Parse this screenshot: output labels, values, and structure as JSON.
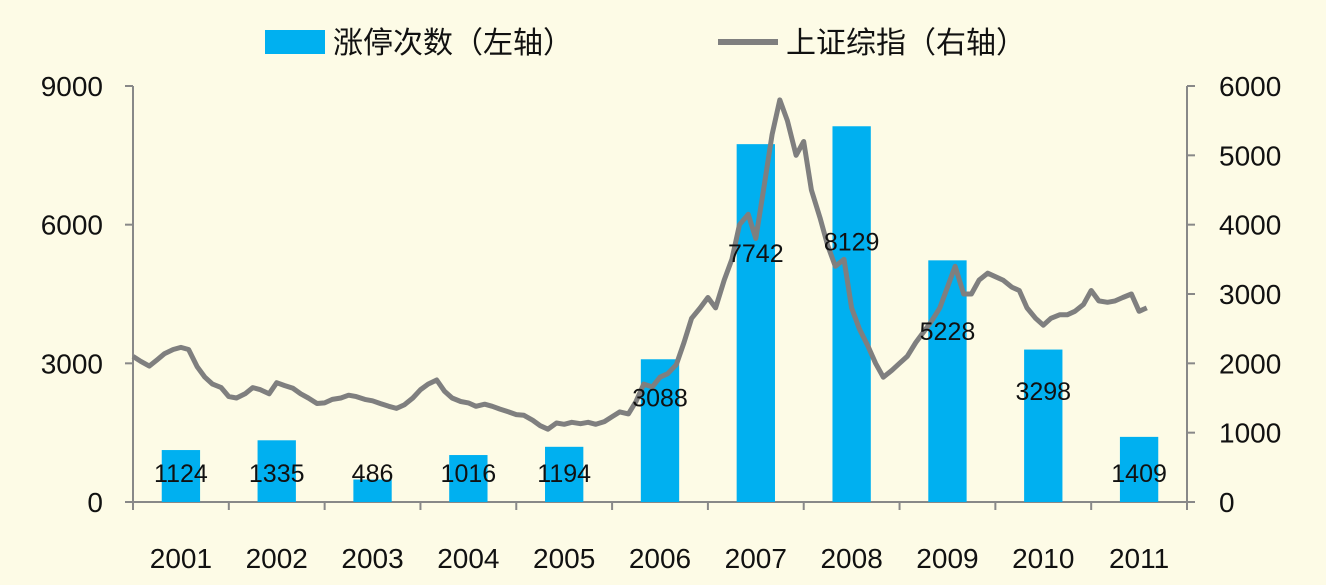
{
  "chart_data": {
    "type": "bar+line",
    "categories": [
      "2001",
      "2002",
      "2003",
      "2004",
      "2005",
      "2006",
      "2007",
      "2008",
      "2009",
      "2010",
      "2011"
    ],
    "series": [
      {
        "name": "涨停次数（左轴）",
        "type": "bar",
        "axis": "left",
        "color": "#00b0f0",
        "values": [
          1124,
          1335,
          486,
          1016,
          1194,
          3088,
          7742,
          8129,
          5228,
          3298,
          1409
        ],
        "labels": [
          "1124",
          "1335",
          "486",
          "1016",
          "1194",
          "3088",
          "7742",
          "8129",
          "5228",
          "3298",
          "1409"
        ]
      },
      {
        "name": "上证综指（右轴）",
        "type": "line",
        "axis": "right",
        "color": "#7f7f7f",
        "x": [
          2001.0,
          2001.08,
          2001.17,
          2001.25,
          2001.33,
          2001.42,
          2001.5,
          2001.58,
          2001.67,
          2001.75,
          2001.83,
          2001.92,
          2002.0,
          2002.08,
          2002.17,
          2002.25,
          2002.33,
          2002.42,
          2002.5,
          2002.58,
          2002.67,
          2002.75,
          2002.83,
          2002.92,
          2003.0,
          2003.08,
          2003.17,
          2003.25,
          2003.33,
          2003.42,
          2003.5,
          2003.58,
          2003.67,
          2003.75,
          2003.83,
          2003.92,
          2004.0,
          2004.08,
          2004.17,
          2004.25,
          2004.33,
          2004.42,
          2004.5,
          2004.58,
          2004.67,
          2004.75,
          2004.83,
          2004.92,
          2005.0,
          2005.08,
          2005.17,
          2005.25,
          2005.33,
          2005.42,
          2005.5,
          2005.58,
          2005.67,
          2005.75,
          2005.83,
          2005.92,
          2006.0,
          2006.08,
          2006.17,
          2006.25,
          2006.33,
          2006.42,
          2006.5,
          2006.58,
          2006.67,
          2006.75,
          2006.83,
          2006.92,
          2007.0,
          2007.08,
          2007.17,
          2007.25,
          2007.33,
          2007.42,
          2007.5,
          2007.58,
          2007.67,
          2007.75,
          2007.83,
          2007.92,
          2008.0,
          2008.08,
          2008.17,
          2008.25,
          2008.33,
          2008.42,
          2008.5,
          2008.58,
          2008.67,
          2008.75,
          2008.83,
          2008.92,
          2009.0,
          2009.08,
          2009.17,
          2009.25,
          2009.33,
          2009.42,
          2009.5,
          2009.58,
          2009.67,
          2009.75,
          2009.83,
          2009.92,
          2010.0,
          2010.08,
          2010.17,
          2010.25,
          2010.33,
          2010.42,
          2010.5,
          2010.58,
          2010.67,
          2010.75,
          2010.83,
          2010.92,
          2011.0,
          2011.08,
          2011.17,
          2011.25,
          2011.33,
          2011.42,
          2011.5,
          2011.58
        ],
        "values": [
          2100,
          2030,
          1960,
          2050,
          2140,
          2200,
          2230,
          2200,
          1950,
          1800,
          1700,
          1650,
          1520,
          1500,
          1560,
          1650,
          1620,
          1560,
          1720,
          1680,
          1640,
          1560,
          1500,
          1420,
          1430,
          1480,
          1500,
          1540,
          1520,
          1480,
          1460,
          1420,
          1380,
          1350,
          1400,
          1500,
          1620,
          1700,
          1760,
          1600,
          1500,
          1450,
          1430,
          1380,
          1410,
          1380,
          1340,
          1300,
          1260,
          1250,
          1180,
          1100,
          1050,
          1140,
          1120,
          1150,
          1130,
          1150,
          1120,
          1160,
          1230,
          1300,
          1270,
          1450,
          1700,
          1660,
          1800,
          1850,
          1980,
          2300,
          2650,
          2800,
          2950,
          2800,
          3200,
          3500,
          4000,
          4150,
          3800,
          4500,
          5300,
          5800,
          5500,
          5000,
          5200,
          4500,
          4100,
          3700,
          3400,
          3500,
          2800,
          2500,
          2250,
          2000,
          1800,
          1900,
          2000,
          2100,
          2300,
          2450,
          2600,
          2800,
          3100,
          3400,
          3000,
          3000,
          3200,
          3300,
          3250,
          3200,
          3100,
          3050,
          2800,
          2650,
          2550,
          2650,
          2700,
          2700,
          2750,
          2850,
          3050,
          2900,
          2880,
          2900,
          2950,
          3000,
          2750,
          2800
        ]
      }
    ],
    "y_left": {
      "min": 0,
      "max": 9000,
      "ticks": [
        "0",
        "3000",
        "6000",
        "9000"
      ],
      "tick_values": [
        0,
        3000,
        6000,
        9000
      ]
    },
    "y_right": {
      "min": 0,
      "max": 6000,
      "ticks": [
        "0",
        "1000",
        "2000",
        "3000",
        "4000",
        "5000",
        "6000"
      ],
      "tick_values": [
        0,
        1000,
        2000,
        3000,
        4000,
        5000,
        6000
      ]
    },
    "legend": {
      "position": "top-center",
      "entries": [
        "涨停次数（左轴）",
        "上证综指（右轴）"
      ]
    },
    "grid": false,
    "title": "",
    "xlabel": "",
    "ylabel": ""
  }
}
